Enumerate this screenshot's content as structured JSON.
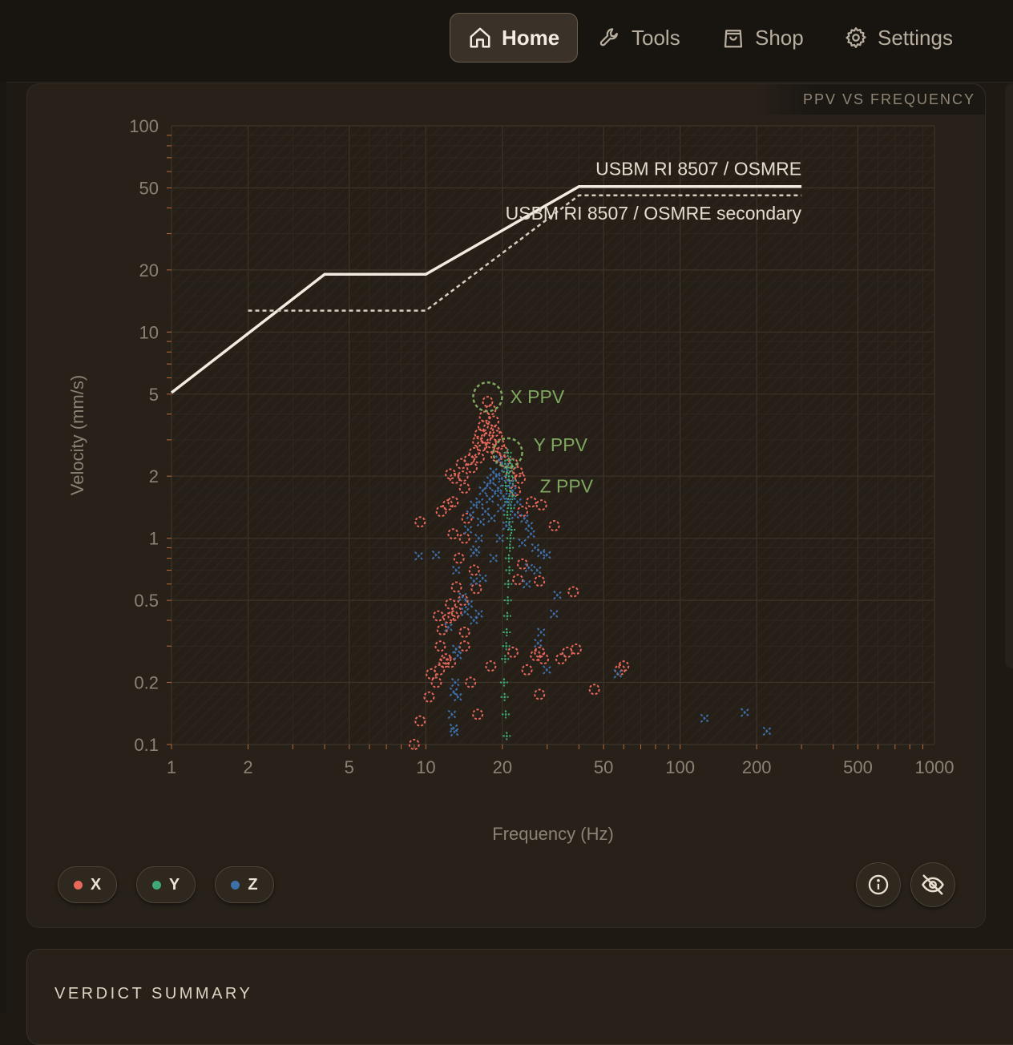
{
  "nav": {
    "items": [
      {
        "label": "Home",
        "icon": "home-icon",
        "active": true
      },
      {
        "label": "Tools",
        "icon": "wrench-icon",
        "active": false
      },
      {
        "label": "Shop",
        "icon": "shopping-bag-icon",
        "active": false
      },
      {
        "label": "Settings",
        "icon": "gear-icon",
        "active": false
      }
    ]
  },
  "card": {
    "tag": "PPV VS FREQUENCY"
  },
  "legend": [
    {
      "label": "X",
      "color": "#e8685c"
    },
    {
      "label": "Y",
      "color": "#3fa877"
    },
    {
      "label": "Z",
      "color": "#3d6fa8"
    }
  ],
  "buttons": {
    "info_icon": "info-icon",
    "hide_icon": "eye-off-icon"
  },
  "verdict": {
    "title": "VERDICT SUMMARY"
  },
  "chart_data": {
    "type": "scatter",
    "title": "",
    "xlabel": "Frequency (Hz)",
    "ylabel": "Velocity (mm/s)",
    "x_scale": "log",
    "y_scale": "log",
    "xlim": [
      1,
      1000
    ],
    "ylim": [
      0.1,
      100
    ],
    "x_ticks": [
      1,
      2,
      5,
      10,
      20,
      50,
      100,
      200,
      500,
      1000
    ],
    "x_tick_labels": [
      "1",
      "2",
      "5",
      "10",
      "20",
      "50",
      "100",
      "200",
      "500",
      "1000"
    ],
    "y_ticks": [
      0.1,
      0.2,
      0.5,
      1,
      2,
      5,
      10,
      20,
      50,
      100
    ],
    "y_tick_labels": [
      "0.1",
      "0.2",
      "0.5",
      "1",
      "2",
      "5",
      "10",
      "20",
      "50",
      "100"
    ],
    "grid": true,
    "limit_lines": [
      {
        "name": "USBM RI 8507 / OSMRE",
        "style": "solid",
        "points": [
          [
            1,
            5.08
          ],
          [
            4,
            19.05
          ],
          [
            10,
            19.05
          ],
          [
            40,
            50.8
          ],
          [
            300,
            50.8
          ]
        ]
      },
      {
        "name": "USBM RI 8507 / OSMRE secondary",
        "style": "dashed",
        "points": [
          [
            2,
            12.7
          ],
          [
            10,
            12.7
          ],
          [
            40,
            46
          ],
          [
            300,
            46
          ]
        ]
      }
    ],
    "series": [
      {
        "name": "X",
        "color": "#e8685c",
        "marker": "circle-dashed",
        "points": [
          [
            17.5,
            4.6
          ],
          [
            18,
            4.2
          ],
          [
            17,
            3.9
          ],
          [
            18.5,
            3.7
          ],
          [
            16.8,
            3.5
          ],
          [
            17.6,
            3.4
          ],
          [
            18.7,
            3.3
          ],
          [
            16.3,
            3.2
          ],
          [
            19.1,
            3.15
          ],
          [
            17.2,
            3.05
          ],
          [
            16,
            2.95
          ],
          [
            18.1,
            2.9
          ],
          [
            19.5,
            2.85
          ],
          [
            16.6,
            2.8
          ],
          [
            17.8,
            2.75
          ],
          [
            20,
            2.65
          ],
          [
            15.5,
            2.6
          ],
          [
            18.9,
            2.5
          ],
          [
            16.2,
            2.45
          ],
          [
            14.8,
            2.4
          ],
          [
            20.5,
            2.35
          ],
          [
            13.8,
            2.3
          ],
          [
            15.2,
            2.2
          ],
          [
            22,
            2.3
          ],
          [
            23,
            2.1
          ],
          [
            12.5,
            2.05
          ],
          [
            14,
            2.0
          ],
          [
            21.5,
            2.0
          ],
          [
            13,
            1.95
          ],
          [
            23.5,
            1.95
          ],
          [
            12.8,
            1.5
          ],
          [
            14.2,
            1.75
          ],
          [
            22.5,
            1.7
          ],
          [
            12.2,
            1.45
          ],
          [
            26,
            1.5
          ],
          [
            28.5,
            1.45
          ],
          [
            11.5,
            1.35
          ],
          [
            24,
            1.35
          ],
          [
            14.5,
            1.25
          ],
          [
            9.5,
            1.2
          ],
          [
            12.8,
            1.05
          ],
          [
            32,
            1.15
          ],
          [
            14.2,
            1.0
          ],
          [
            13.5,
            0.8
          ],
          [
            24,
            0.75
          ],
          [
            15.5,
            0.7
          ],
          [
            23,
            0.63
          ],
          [
            28,
            0.62
          ],
          [
            13.2,
            0.58
          ],
          [
            38,
            0.55
          ],
          [
            15.8,
            0.57
          ],
          [
            14,
            0.5
          ],
          [
            12.5,
            0.48
          ],
          [
            13.2,
            0.44
          ],
          [
            12.8,
            0.42
          ],
          [
            11.2,
            0.42
          ],
          [
            12.3,
            0.41
          ],
          [
            14.2,
            0.35
          ],
          [
            11.6,
            0.36
          ],
          [
            11.4,
            0.3
          ],
          [
            14.2,
            0.3
          ],
          [
            22,
            0.28
          ],
          [
            28,
            0.28
          ],
          [
            36,
            0.28
          ],
          [
            39,
            0.29
          ],
          [
            29,
            0.26
          ],
          [
            34,
            0.26
          ],
          [
            27,
            0.27
          ],
          [
            12,
            0.26
          ],
          [
            12.5,
            0.25
          ],
          [
            11.8,
            0.25
          ],
          [
            18,
            0.24
          ],
          [
            11.3,
            0.23
          ],
          [
            25,
            0.23
          ],
          [
            10.5,
            0.22
          ],
          [
            58,
            0.23
          ],
          [
            60,
            0.24
          ],
          [
            15,
            0.2
          ],
          [
            11,
            0.2
          ],
          [
            46,
            0.185
          ],
          [
            28,
            0.175
          ],
          [
            10.3,
            0.17
          ],
          [
            16,
            0.14
          ],
          [
            9.5,
            0.13
          ],
          [
            9,
            0.1
          ]
        ]
      },
      {
        "name": "Y",
        "color": "#3fa877",
        "marker": "plus",
        "points": [
          [
            21,
            2.6
          ],
          [
            21.5,
            2.4
          ],
          [
            20.5,
            2.3
          ],
          [
            21.8,
            2.2
          ],
          [
            20.8,
            2.1
          ],
          [
            21.2,
            2.0
          ],
          [
            22,
            1.9
          ],
          [
            20.6,
            1.8
          ],
          [
            21.4,
            1.7
          ],
          [
            21.9,
            1.6
          ],
          [
            21.1,
            1.5
          ],
          [
            21.6,
            1.4
          ],
          [
            20.9,
            1.3
          ],
          [
            21.3,
            1.2
          ],
          [
            21.7,
            1.1
          ],
          [
            21.5,
            1.0
          ],
          [
            21.4,
            0.9
          ],
          [
            21.2,
            0.8
          ],
          [
            21.3,
            0.7
          ],
          [
            21.1,
            0.6
          ],
          [
            21.0,
            0.5
          ],
          [
            20.9,
            0.42
          ],
          [
            20.8,
            0.35
          ],
          [
            20.7,
            0.3
          ],
          [
            20.5,
            0.26
          ],
          [
            20.3,
            0.2
          ],
          [
            20.4,
            0.17
          ],
          [
            20.6,
            0.14
          ],
          [
            20.8,
            0.11
          ]
        ]
      },
      {
        "name": "Z",
        "color": "#3d6fa8",
        "marker": "cross",
        "points": [
          [
            19.5,
            2.4
          ],
          [
            20.5,
            2.2
          ],
          [
            18.5,
            2.1
          ],
          [
            19,
            2.0
          ],
          [
            20,
            1.95
          ],
          [
            18,
            1.9
          ],
          [
            21.5,
            1.85
          ],
          [
            17.5,
            1.8
          ],
          [
            19.3,
            1.75
          ],
          [
            16.8,
            1.7
          ],
          [
            22,
            1.7
          ],
          [
            18.8,
            1.65
          ],
          [
            20.3,
            1.6
          ],
          [
            17.9,
            1.55
          ],
          [
            21,
            1.5
          ],
          [
            16.3,
            1.5
          ],
          [
            23,
            1.5
          ],
          [
            15.5,
            1.45
          ],
          [
            19.8,
            1.4
          ],
          [
            17.2,
            1.35
          ],
          [
            22.5,
            1.3
          ],
          [
            15,
            1.3
          ],
          [
            18.2,
            1.25
          ],
          [
            24.5,
            1.25
          ],
          [
            16.5,
            1.2
          ],
          [
            20.8,
            1.15
          ],
          [
            25.5,
            1.15
          ],
          [
            14.7,
            1.1
          ],
          [
            26,
            1.05
          ],
          [
            16.2,
            1.0
          ],
          [
            19.6,
            1.0
          ],
          [
            24,
            0.95
          ],
          [
            27,
            0.9
          ],
          [
            15.8,
            0.88
          ],
          [
            28.5,
            0.85
          ],
          [
            30,
            0.83
          ],
          [
            9.4,
            0.82
          ],
          [
            11,
            0.83
          ],
          [
            15.5,
            0.85
          ],
          [
            18.5,
            0.8
          ],
          [
            25.5,
            0.72
          ],
          [
            13.2,
            0.7
          ],
          [
            27.5,
            0.7
          ],
          [
            16.8,
            0.64
          ],
          [
            15.5,
            0.62
          ],
          [
            25,
            0.6
          ],
          [
            33,
            0.53
          ],
          [
            14,
            0.52
          ],
          [
            14.8,
            0.48
          ],
          [
            14.3,
            0.44
          ],
          [
            16.2,
            0.43
          ],
          [
            15.5,
            0.4
          ],
          [
            32,
            0.43
          ],
          [
            12.3,
            0.37
          ],
          [
            28.5,
            0.35
          ],
          [
            27.7,
            0.31
          ],
          [
            13.2,
            0.29
          ],
          [
            13.4,
            0.27
          ],
          [
            30,
            0.23
          ],
          [
            13.1,
            0.2
          ],
          [
            12.9,
            0.18
          ],
          [
            13.4,
            0.17
          ],
          [
            57,
            0.22
          ],
          [
            12.7,
            0.14
          ],
          [
            12.9,
            0.12
          ],
          [
            13,
            0.115
          ],
          [
            125,
            0.134
          ],
          [
            180,
            0.143
          ],
          [
            220,
            0.116
          ]
        ]
      }
    ],
    "annotations": [
      {
        "text": "X PPV",
        "x": 17.5,
        "y": 4.85,
        "series": "X"
      },
      {
        "text": "Y PPV",
        "x": 21,
        "y": 2.6,
        "series": "Y"
      },
      {
        "text": "Z PPV",
        "x": 21,
        "y": 2.3,
        "series": "Z"
      }
    ],
    "annotation_color": "#7fa65f"
  }
}
